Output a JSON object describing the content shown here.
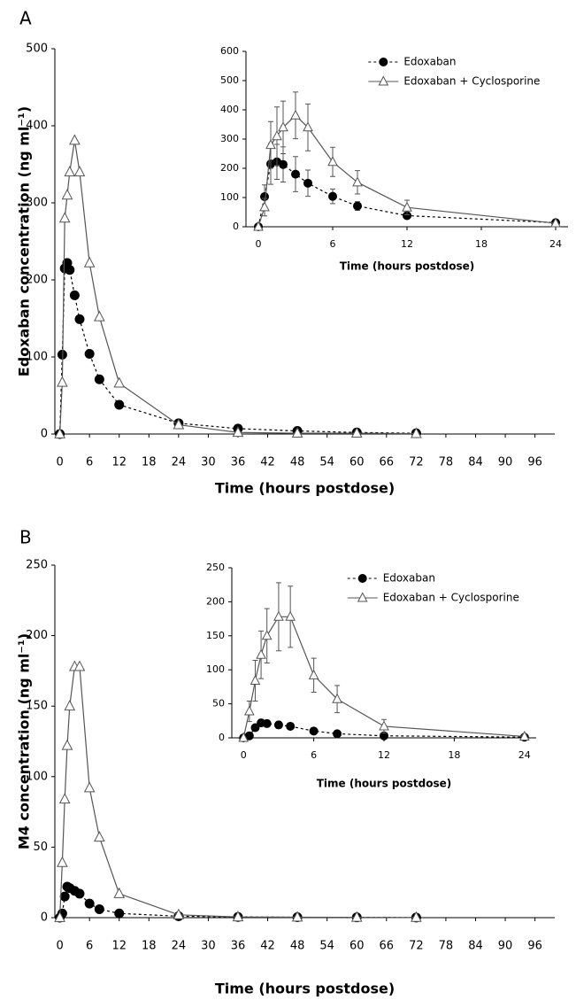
{
  "chart_data": [
    {
      "type": "line",
      "panel": "A",
      "xlabel": "Time (hours postdose)",
      "ylabel": "Edoxaban concentration (ng ml⁻¹)",
      "x": [
        0,
        0.5,
        1,
        1.5,
        2,
        3,
        4,
        6,
        8,
        12,
        24,
        36,
        48,
        60,
        72
      ],
      "xlim": [
        -1,
        100
      ],
      "xticks": [
        0,
        6,
        12,
        18,
        24,
        30,
        36,
        42,
        48,
        54,
        60,
        66,
        72,
        78,
        84,
        90,
        96
      ],
      "ylim": [
        0,
        500
      ],
      "yticks": [
        0,
        100,
        200,
        300,
        400,
        500
      ],
      "series": [
        {
          "marker": "circle",
          "dash": true,
          "color": "#000000",
          "values": [
            0,
            103,
            215,
            222,
            213,
            180,
            149,
            104,
            71,
            38,
            14,
            7,
            4,
            2,
            1
          ]
        },
        {
          "marker": "triangle",
          "dash": false,
          "color": "#555555",
          "values": [
            0,
            67,
            280,
            310,
            340,
            381,
            340,
            222,
            152,
            66,
            12,
            2,
            1,
            1,
            0.5
          ]
        }
      ]
    },
    {
      "type": "line",
      "xlabel": "Time (hours postdose)",
      "x": [
        0,
        0.5,
        1,
        1.5,
        2,
        3,
        4,
        6,
        8,
        12,
        24
      ],
      "xlim": [
        -1,
        25
      ],
      "xticks": [
        0,
        6,
        12,
        18,
        24
      ],
      "ylim": [
        0,
        600
      ],
      "yticks": [
        0,
        100,
        200,
        300,
        400,
        500,
        600
      ],
      "series": [
        {
          "name": "Edoxaban",
          "marker": "circle",
          "dash": true,
          "color": "#000000",
          "values": [
            0,
            103,
            215,
            222,
            213,
            180,
            149,
            104,
            71,
            38,
            14
          ],
          "errors": [
            0,
            40,
            70,
            60,
            60,
            60,
            45,
            25,
            15,
            10,
            5
          ]
        },
        {
          "name": "Edoxaban + Cyclosporine",
          "marker": "triangle",
          "dash": false,
          "color": "#555555",
          "values": [
            0,
            67,
            280,
            310,
            340,
            381,
            340,
            222,
            152,
            66,
            12
          ],
          "errors": [
            0,
            30,
            80,
            100,
            90,
            80,
            80,
            50,
            40,
            25,
            5
          ]
        }
      ]
    },
    {
      "type": "line",
      "panel": "B",
      "xlabel": "Time (hours postdose)",
      "ylabel": "M4 concentration (ng ml⁻¹)",
      "x": [
        0,
        0.5,
        1,
        1.5,
        2,
        3,
        4,
        6,
        8,
        12,
        24,
        36,
        48,
        60,
        72
      ],
      "xlim": [
        -1,
        100
      ],
      "xticks": [
        0,
        6,
        12,
        18,
        24,
        30,
        36,
        42,
        48,
        54,
        60,
        66,
        72,
        78,
        84,
        90,
        96
      ],
      "ylim": [
        0,
        250
      ],
      "yticks": [
        0,
        50,
        100,
        150,
        200,
        250
      ],
      "series": [
        {
          "marker": "circle",
          "dash": true,
          "color": "#000000",
          "values": [
            0,
            3,
            15,
            22,
            21,
            19,
            17,
            10,
            6,
            3,
            1,
            0.5,
            0.3,
            0.2,
            0.1
          ]
        },
        {
          "marker": "triangle",
          "dash": false,
          "color": "#555555",
          "values": [
            0,
            39,
            84,
            122,
            150,
            178,
            178,
            92,
            57,
            17,
            2,
            0.5,
            0.3,
            0.2,
            0.1
          ]
        }
      ]
    },
    {
      "type": "line",
      "xlabel": "Time (hours postdose)",
      "x": [
        0,
        0.5,
        1,
        1.5,
        2,
        3,
        4,
        6,
        8,
        12,
        24
      ],
      "xlim": [
        -1,
        25
      ],
      "xticks": [
        0,
        6,
        12,
        18,
        24
      ],
      "ylim": [
        0,
        250
      ],
      "yticks": [
        0,
        50,
        100,
        150,
        200,
        250
      ],
      "series": [
        {
          "name": "Edoxaban",
          "marker": "circle",
          "dash": true,
          "color": "#000000",
          "values": [
            0,
            3,
            15,
            22,
            21,
            19,
            17,
            10,
            6,
            3,
            1
          ],
          "errors": [
            0,
            2,
            4,
            5,
            5,
            5,
            4,
            3,
            2,
            2,
            1
          ]
        },
        {
          "name": "Edoxaban + Cyclosporine",
          "marker": "triangle",
          "dash": false,
          "color": "#555555",
          "values": [
            0,
            39,
            84,
            122,
            150,
            178,
            178,
            92,
            57,
            17,
            2
          ],
          "errors": [
            0,
            15,
            30,
            35,
            40,
            50,
            45,
            25,
            20,
            10,
            3
          ]
        }
      ]
    }
  ]
}
